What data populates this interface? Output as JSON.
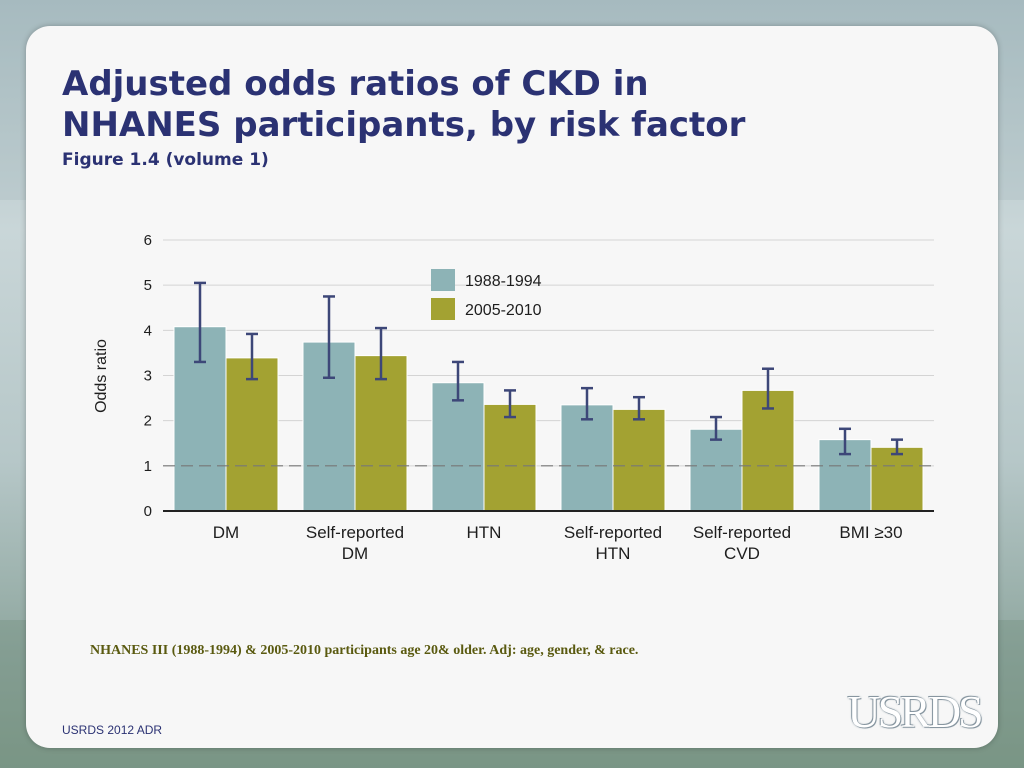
{
  "slide": {
    "title_line1": "Adjusted odds ratios of CKD in",
    "title_line2": "NHANES participants, by risk factor",
    "subtitle": "Figure 1.4 (volume 1)",
    "footnote": "NHANES III (1988-1994) & 2005-2010 participants age 20& older. Adj: age, gender, & race.",
    "source": "USRDS 2012 ADR",
    "logo_text": "USRDS"
  },
  "chart_data": {
    "type": "bar",
    "title": "",
    "xlabel": "",
    "ylabel": "Odds ratio",
    "ylim": [
      0,
      6
    ],
    "yticks": [
      0,
      1,
      2,
      3,
      4,
      5,
      6
    ],
    "grid": true,
    "reference_line": 1,
    "legend_position": "top-right",
    "categories": [
      [
        "DM"
      ],
      [
        "Self-reported",
        "DM"
      ],
      [
        "HTN"
      ],
      [
        "Self-reported",
        "HTN"
      ],
      [
        "Self-reported",
        "CVD"
      ],
      [
        "BMI ≥30"
      ]
    ],
    "series": [
      {
        "name": "1988-1994",
        "color": "#8db3b6",
        "values": [
          4.08,
          3.74,
          2.84,
          2.35,
          1.81,
          1.58
        ],
        "ci_low": [
          3.3,
          2.95,
          2.45,
          2.03,
          1.58,
          1.26
        ],
        "ci_high": [
          5.05,
          4.75,
          3.3,
          2.72,
          2.08,
          1.82
        ]
      },
      {
        "name": "2005-2010",
        "color": "#a3a232",
        "values": [
          3.39,
          3.44,
          2.36,
          2.25,
          2.67,
          1.41
        ],
        "ci_low": [
          2.92,
          2.92,
          2.08,
          2.03,
          2.27,
          1.26
        ],
        "ci_high": [
          3.92,
          4.05,
          2.67,
          2.52,
          3.15,
          1.58
        ]
      }
    ],
    "error_bar_color": "#3d4778"
  }
}
